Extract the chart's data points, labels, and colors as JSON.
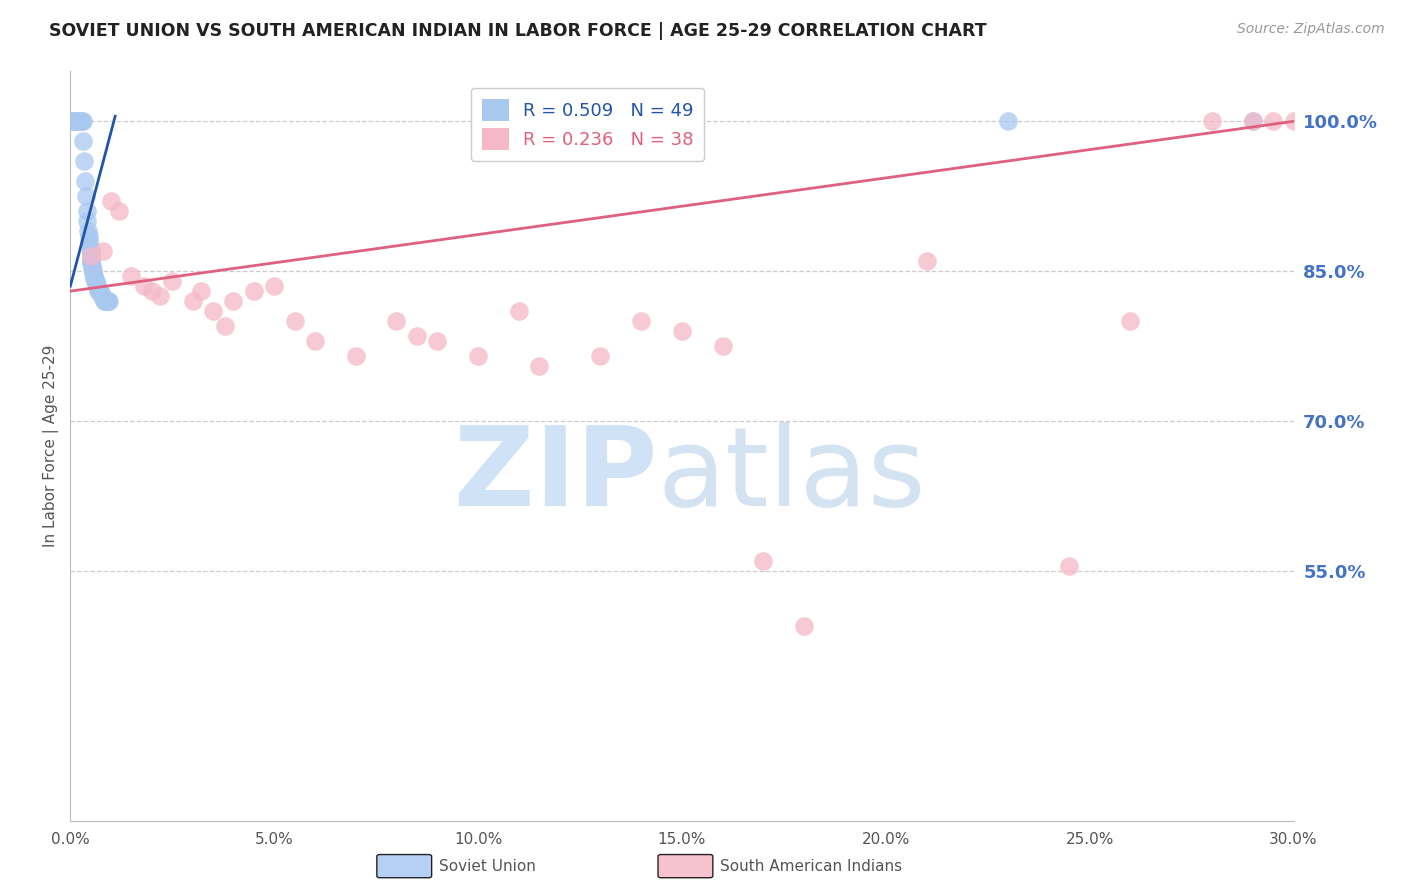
{
  "title": "SOVIET UNION VS SOUTH AMERICAN INDIAN IN LABOR FORCE | AGE 25-29 CORRELATION CHART",
  "source": "Source: ZipAtlas.com",
  "ylabel": "In Labor Force | Age 25-29",
  "xlim": [
    0.0,
    30.0
  ],
  "ylim": [
    30.0,
    105.0
  ],
  "yticks": [
    55.0,
    70.0,
    85.0,
    100.0
  ],
  "xticks": [
    0.0,
    5.0,
    10.0,
    15.0,
    20.0,
    25.0,
    30.0
  ],
  "soviet_color": "#a8c8f0",
  "south_am_color": "#f5b8c8",
  "soviet_line_color": "#2255aa",
  "south_am_line_color": "#e06080",
  "right_tick_color": "#4472c4",
  "grid_color": "#cccccc",
  "title_color": "#222222",
  "axis_label_color": "#555555",
  "background_color": "#ffffff",
  "legend_R1": "R = 0.509",
  "legend_N1": "N = 49",
  "legend_R2": "R = 0.236",
  "legend_N2": "N = 38",
  "bottom_label1": "Soviet Union",
  "bottom_label2": "South American Indians",
  "soviet_x": [
    0.05,
    0.05,
    0.1,
    0.15,
    0.2,
    0.25,
    0.28,
    0.3,
    0.32,
    0.33,
    0.35,
    0.38,
    0.4,
    0.42,
    0.43,
    0.45,
    0.47,
    0.48,
    0.5,
    0.5,
    0.5,
    0.5,
    0.5,
    0.5,
    0.52,
    0.53,
    0.55,
    0.55,
    0.57,
    0.58,
    0.6,
    0.62,
    0.63,
    0.65,
    0.67,
    0.68,
    0.7,
    0.72,
    0.75,
    0.78,
    0.8,
    0.83,
    0.85,
    0.88,
    0.9,
    0.92,
    0.95,
    23.0,
    29.0
  ],
  "soviet_y": [
    100.0,
    100.0,
    100.0,
    100.0,
    100.0,
    100.0,
    100.0,
    100.0,
    98.0,
    96.0,
    94.0,
    92.5,
    91.0,
    90.0,
    89.0,
    88.5,
    88.0,
    87.5,
    87.0,
    86.8,
    86.5,
    86.2,
    86.0,
    85.8,
    85.5,
    85.3,
    85.0,
    84.8,
    84.5,
    84.3,
    84.0,
    84.0,
    83.8,
    83.5,
    83.3,
    83.0,
    83.0,
    83.0,
    82.8,
    82.5,
    82.3,
    82.0,
    82.0,
    82.0,
    82.0,
    82.0,
    82.0,
    100.0,
    100.0
  ],
  "south_am_x": [
    0.5,
    0.8,
    1.0,
    1.2,
    1.5,
    1.8,
    2.0,
    2.2,
    2.5,
    3.0,
    3.2,
    3.5,
    3.8,
    4.0,
    4.5,
    5.0,
    5.5,
    6.0,
    7.0,
    8.0,
    8.5,
    9.0,
    10.0,
    11.0,
    11.5,
    13.0,
    14.0,
    15.0,
    16.0,
    17.0,
    18.0,
    21.0,
    24.5,
    26.0,
    28.0,
    29.0,
    29.5,
    30.0
  ],
  "south_am_y": [
    86.5,
    87.0,
    92.0,
    91.0,
    84.5,
    83.5,
    83.0,
    82.5,
    84.0,
    82.0,
    83.0,
    81.0,
    79.5,
    82.0,
    83.0,
    83.5,
    80.0,
    78.0,
    76.5,
    80.0,
    78.5,
    78.0,
    76.5,
    81.0,
    75.5,
    76.5,
    80.0,
    79.0,
    77.5,
    56.0,
    49.5,
    86.0,
    55.5,
    80.0,
    100.0,
    100.0,
    100.0,
    100.0
  ],
  "su_trend_x0": 0.0,
  "su_trend_y0": 83.5,
  "su_trend_x1": 1.1,
  "su_trend_y1": 100.5,
  "sa_trend_x0": 0.0,
  "sa_trend_y0": 83.0,
  "sa_trend_x1": 30.0,
  "sa_trend_y1": 100.0
}
